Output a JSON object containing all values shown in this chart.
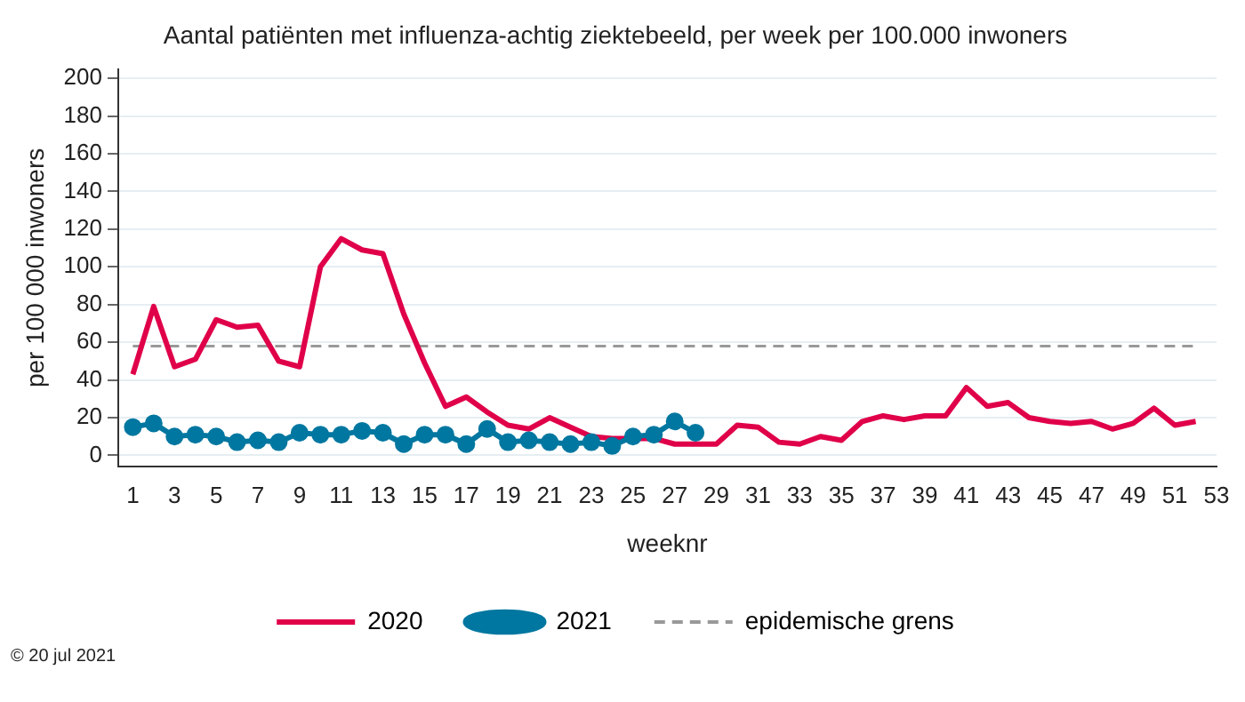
{
  "chart_data": {
    "type": "line",
    "title": "Aantal patiënten met influenza-achtig ziektebeeld, per week per 100.000 inwoners",
    "xlabel": "weeknr",
    "ylabel": "per 100 000 inwoners",
    "x": [
      1,
      2,
      3,
      4,
      5,
      6,
      7,
      8,
      9,
      10,
      11,
      12,
      13,
      14,
      15,
      16,
      17,
      18,
      19,
      20,
      21,
      22,
      23,
      24,
      25,
      26,
      27,
      28,
      29,
      30,
      31,
      32,
      33,
      34,
      35,
      36,
      37,
      38,
      39,
      40,
      41,
      42,
      43,
      44,
      45,
      46,
      47,
      48,
      49,
      50,
      51,
      52
    ],
    "series": [
      {
        "name": "2020",
        "color": "#e0004a",
        "marker": "none",
        "values": [
          43,
          79,
          47,
          51,
          72,
          68,
          69,
          50,
          47,
          100,
          115,
          109,
          107,
          75,
          49,
          26,
          31,
          23,
          16,
          14,
          20,
          15,
          10,
          9,
          9,
          9,
          6,
          6,
          6,
          16,
          15,
          7,
          6,
          10,
          8,
          18,
          21,
          19,
          21,
          21,
          36,
          26,
          28,
          20,
          18,
          17,
          18,
          14,
          17,
          25,
          16,
          18
        ]
      },
      {
        "name": "2021",
        "color": "#0077a0",
        "marker": "circle",
        "values": [
          15,
          17,
          10,
          11,
          10,
          7,
          8,
          7,
          12,
          11,
          11,
          13,
          12,
          6,
          11,
          11,
          6,
          14,
          7,
          8,
          7,
          6,
          7,
          5,
          10,
          11,
          18,
          12,
          null,
          null,
          null,
          null,
          null,
          null,
          null,
          null,
          null,
          null,
          null,
          null,
          null,
          null,
          null,
          null,
          null,
          null,
          null,
          null,
          null,
          null,
          null,
          null
        ]
      }
    ],
    "ref_lines": [
      {
        "axis": "y",
        "value": 58,
        "label": "epidemische grens",
        "color": "#999999",
        "line_style": "dashed"
      }
    ],
    "xlim": [
      0.3,
      53
    ],
    "xticks": [
      1,
      3,
      5,
      7,
      9,
      11,
      13,
      15,
      17,
      19,
      21,
      23,
      25,
      27,
      29,
      31,
      33,
      35,
      37,
      39,
      41,
      43,
      45,
      47,
      49,
      51,
      53
    ],
    "ylim": [
      -6,
      205
    ],
    "yticks": [
      0,
      20,
      40,
      60,
      80,
      100,
      120,
      140,
      160,
      180,
      200
    ],
    "grid": "y",
    "legend": "bottom",
    "line_style": "solid",
    "annotations": [
      "© 20 jul 2021"
    ]
  }
}
